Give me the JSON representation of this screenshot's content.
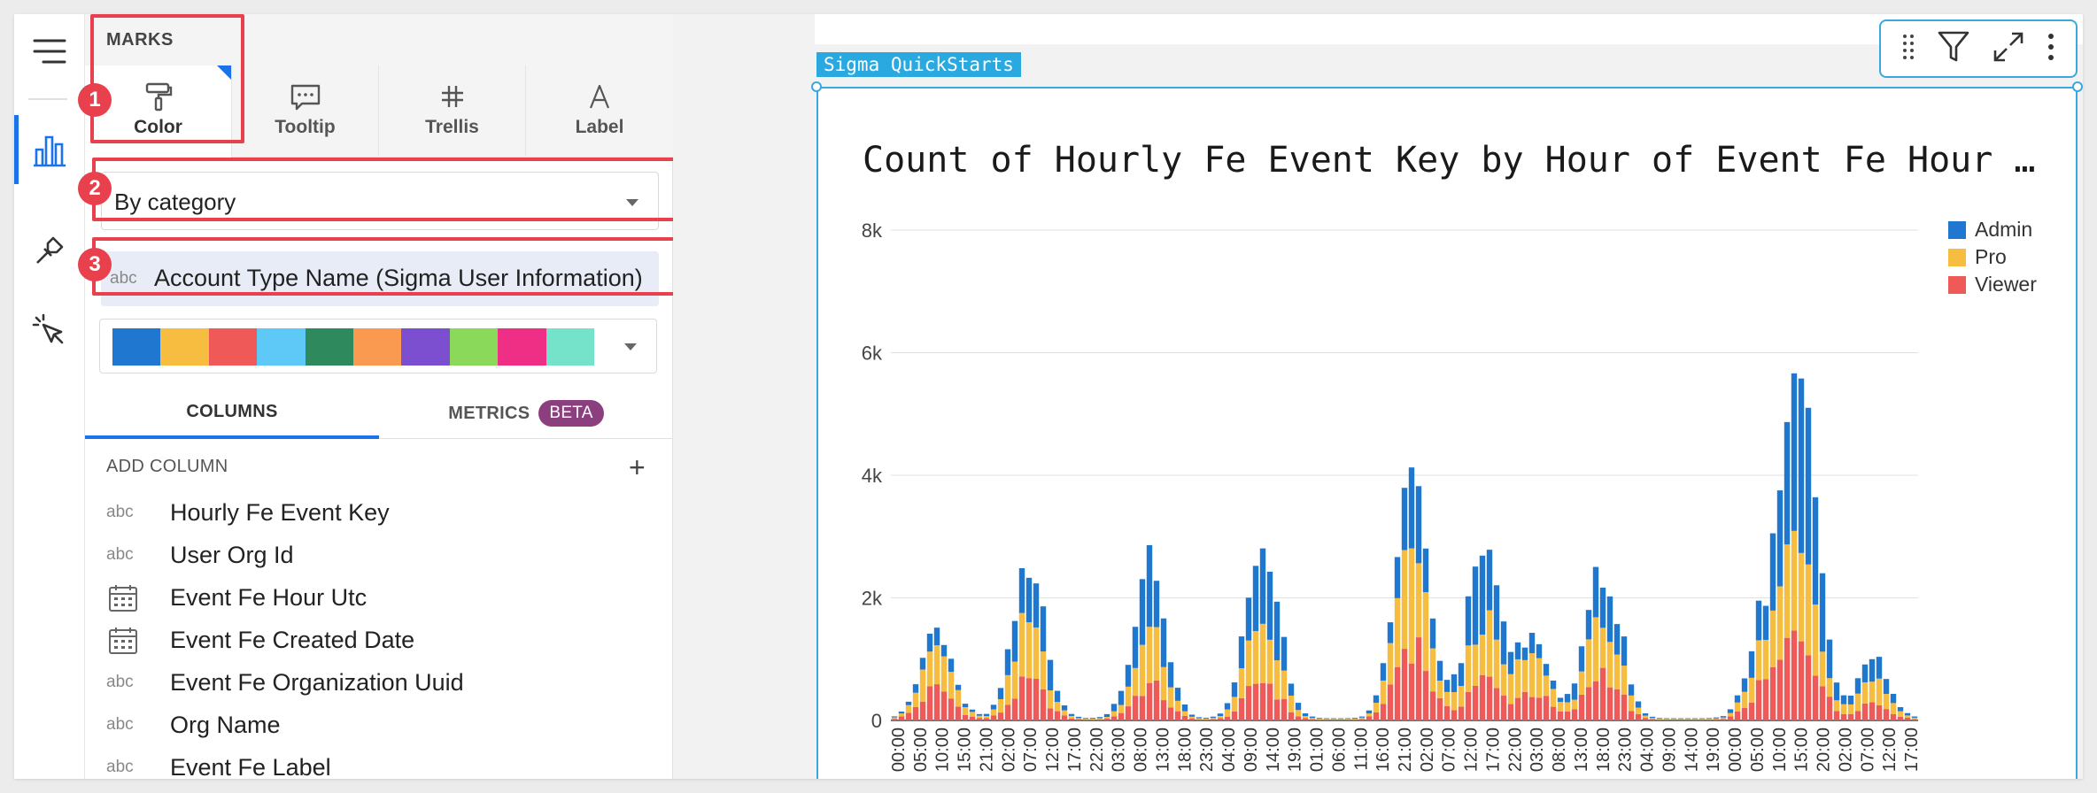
{
  "marks_panel": {
    "title": "MARKS",
    "tabs": [
      {
        "label": "Color",
        "icon": "paint-roller-icon"
      },
      {
        "label": "Tooltip",
        "icon": "speech-bubble-icon"
      },
      {
        "label": "Trellis",
        "icon": "trellis-icon"
      },
      {
        "label": "Label",
        "icon": "letter-a-icon"
      }
    ],
    "color_mode": "By category",
    "color_by_field": {
      "type": "abc",
      "name": "Account Type Name (Sigma User Information)"
    },
    "palette": [
      "#1f77d0",
      "#f6bd41",
      "#ef5a58",
      "#5ec8f7",
      "#2e8a5c",
      "#fa9a50",
      "#7b4fcf",
      "#8bd95a",
      "#ef2f86",
      "#74e3c9"
    ]
  },
  "subtabs": {
    "columns": "COLUMNS",
    "metrics": "METRICS",
    "beta": "BETA"
  },
  "add_column": {
    "label": "ADD COLUMN",
    "plus": "+"
  },
  "columns": [
    {
      "type": "abc",
      "name": "Hourly Fe Event Key"
    },
    {
      "type": "abc",
      "name": "User Org Id"
    },
    {
      "type": "date",
      "name": "Event Fe Hour Utc"
    },
    {
      "type": "date",
      "name": "Event Fe Created Date"
    },
    {
      "type": "abc",
      "name": "Event Fe Organization Uuid"
    },
    {
      "type": "abc",
      "name": "Org Name"
    },
    {
      "type": "abc",
      "name": "Event Fe Label"
    }
  ],
  "annotations": [
    "1",
    "2",
    "3"
  ],
  "workbook": {
    "tag": "Sigma QuickStarts"
  },
  "toolbar_icons": [
    "drag-handle-icon",
    "filter-icon",
    "expand-icon",
    "more-vertical-icon"
  ],
  "colors": {
    "accent": "#1a73e8",
    "annotation": "#e8404c",
    "selection": "#3ba7e0"
  },
  "chart_data": {
    "type": "bar",
    "stacked": true,
    "title": "Count of Hourly Fe Event Key by Hour of Event Fe Hour …",
    "xlabel": "",
    "ylabel": "",
    "ylim": [
      0,
      8000
    ],
    "yticks": [
      "0",
      "2k",
      "4k",
      "6k",
      "8k"
    ],
    "grid": true,
    "legend_position": "top-right",
    "x_tick_labels": [
      "00:00",
      "05:00",
      "10:00",
      "15:00",
      "21:00",
      "02:00",
      "07:00",
      "12:00",
      "17:00",
      "22:00",
      "03:00",
      "08:00",
      "13:00",
      "18:00",
      "23:00",
      "04:00",
      "09:00",
      "14:00",
      "19:00",
      "01:00",
      "06:00",
      "11:00",
      "16:00",
      "21:00",
      "02:00",
      "07:00",
      "12:00",
      "17:00",
      "22:00",
      "03:00",
      "08:00",
      "13:00",
      "18:00",
      "23:00",
      "04:00",
      "09:00",
      "14:00",
      "19:00",
      "00:00",
      "05:00",
      "10:00",
      "15:00",
      "20:00",
      "02:00",
      "07:00",
      "12:00",
      "17:00"
    ],
    "series": [
      {
        "name": "Admin",
        "color": "#1f77d0",
        "peaks": [
          [
            6,
            250
          ],
          [
            19,
            1000
          ],
          [
            36,
            1050
          ],
          [
            52,
            1150
          ],
          [
            73,
            1100
          ],
          [
            83,
            1200
          ],
          [
            90,
            250
          ],
          [
            100,
            900
          ],
          [
            123,
            550
          ],
          [
            128,
            2400
          ],
          [
            138,
            300
          ]
        ]
      },
      {
        "name": "Pro",
        "color": "#f6bd41",
        "peaks": [
          [
            6,
            600
          ],
          [
            19,
            900
          ],
          [
            36,
            800
          ],
          [
            52,
            1000
          ],
          [
            73,
            1500
          ],
          [
            83,
            900
          ],
          [
            90,
            600
          ],
          [
            100,
            900
          ],
          [
            123,
            550
          ],
          [
            128,
            1800
          ],
          [
            138,
            400
          ]
        ]
      },
      {
        "name": "Viewer",
        "color": "#ef5a58",
        "peaks": [
          [
            6,
            500
          ],
          [
            19,
            600
          ],
          [
            36,
            550
          ],
          [
            52,
            650
          ],
          [
            73,
            1300
          ],
          [
            83,
            650
          ],
          [
            90,
            450
          ],
          [
            100,
            800
          ],
          [
            123,
            500
          ],
          [
            128,
            1400
          ],
          [
            138,
            280
          ]
        ]
      }
    ]
  }
}
